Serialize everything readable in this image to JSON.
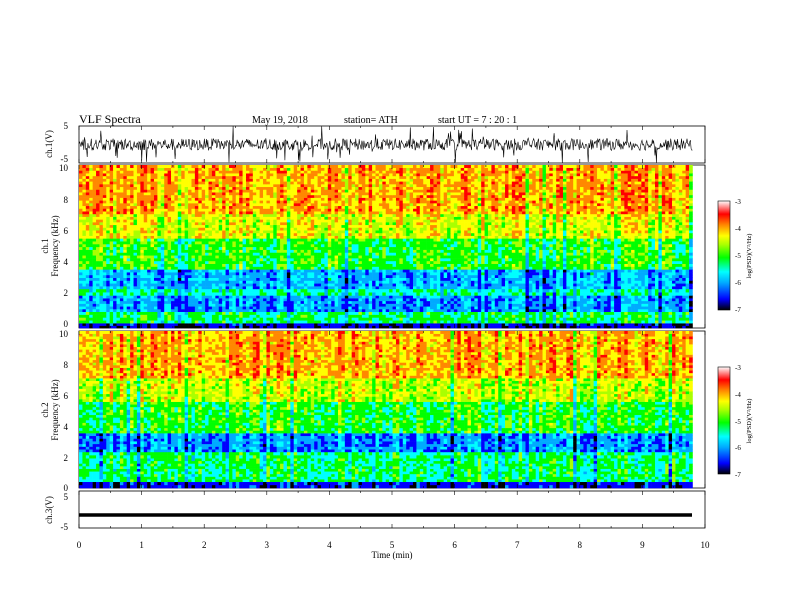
{
  "header": {
    "title": "VLF  Spectra",
    "date": "May 19, 2018",
    "station": "station= ATH",
    "start": "start  UT  =   7  : 20 : 1"
  },
  "colors": {
    "spectrum": [
      "#000000",
      "#0000ff",
      "#00aaff",
      "#00ffff",
      "#00ff00",
      "#aaff00",
      "#ffff00",
      "#ff8800",
      "#ff0000",
      "#ffffff"
    ],
    "waveform": "#000000"
  },
  "chart_data": [
    {
      "type": "line",
      "panel": "ch1-waveform",
      "ylabel": "ch.1(V)",
      "ylim": [
        -5,
        5
      ],
      "yticks": [
        "5",
        "-5"
      ],
      "xlim": [
        0,
        10
      ],
      "description_values": {
        "baseline_V": 0,
        "typical_amplitude_V": 2,
        "max_spike_V": 5
      }
    },
    {
      "type": "heatmap",
      "panel": "ch1-spectrogram",
      "ylabel": "ch.1\nFrequency (kHz)",
      "ylabel_lines": [
        "ch.1",
        "Frequency (kHz)"
      ],
      "ylim": [
        0,
        10
      ],
      "yticks": [
        "0",
        "2",
        "4",
        "6",
        "8",
        "10"
      ],
      "xlim": [
        0,
        9.8
      ],
      "colorbar": {
        "label": "log(PSD)(V²/Hz)",
        "range": [
          -7,
          -3
        ],
        "ticks": [
          "-3",
          "-4",
          "-5",
          "-6",
          "-7"
        ]
      },
      "bands": [
        {
          "f_from": 0.0,
          "f_to": 0.3,
          "level": -6.5
        },
        {
          "f_from": 0.3,
          "f_to": 1.0,
          "level": -5.0
        },
        {
          "f_from": 1.0,
          "f_to": 2.0,
          "level": -5.8
        },
        {
          "f_from": 2.0,
          "f_to": 2.4,
          "level": -5.2
        },
        {
          "f_from": 2.4,
          "f_to": 3.6,
          "level": -5.7
        },
        {
          "f_from": 3.6,
          "f_to": 5.5,
          "level": -4.8
        },
        {
          "f_from": 5.5,
          "f_to": 7.0,
          "level": -4.2
        },
        {
          "f_from": 7.0,
          "f_to": 10.0,
          "level": -3.8
        }
      ]
    },
    {
      "type": "heatmap",
      "panel": "ch2-spectrogram",
      "ylabel": "ch.2\nFrequency (kHz)",
      "ylabel_lines": [
        "ch.2",
        "Frequency (kHz)"
      ],
      "ylim": [
        0,
        10
      ],
      "yticks": [
        "0",
        "2",
        "4",
        "6",
        "8",
        "10"
      ],
      "xlim": [
        0,
        9.8
      ],
      "colorbar": {
        "label": "log(PSD)(V²/Hz)",
        "range": [
          -7,
          -3
        ],
        "ticks": [
          "-3",
          "-4",
          "-5",
          "-6",
          "-7"
        ]
      },
      "bands": [
        {
          "f_from": 0.0,
          "f_to": 0.4,
          "level": -6.3
        },
        {
          "f_from": 0.4,
          "f_to": 1.9,
          "level": -5.0
        },
        {
          "f_from": 1.9,
          "f_to": 2.3,
          "level": -5.0
        },
        {
          "f_from": 2.3,
          "f_to": 3.5,
          "level": -5.8
        },
        {
          "f_from": 3.5,
          "f_to": 5.5,
          "level": -4.8
        },
        {
          "f_from": 5.5,
          "f_to": 7.0,
          "level": -4.3
        },
        {
          "f_from": 7.0,
          "f_to": 10.0,
          "level": -3.8
        }
      ]
    },
    {
      "type": "line",
      "panel": "ch3-waveform",
      "ylabel": "ch.3(V)",
      "ylim": [
        -5,
        5
      ],
      "yticks": [
        "5",
        "-5"
      ],
      "xlim": [
        0,
        10
      ],
      "xlabel": "Time  (min)",
      "xticks": [
        "0",
        "1",
        "2",
        "3",
        "4",
        "5",
        "6",
        "7",
        "8",
        "9",
        "10"
      ],
      "description_values": {
        "constant_level_V": -1.5
      }
    }
  ]
}
